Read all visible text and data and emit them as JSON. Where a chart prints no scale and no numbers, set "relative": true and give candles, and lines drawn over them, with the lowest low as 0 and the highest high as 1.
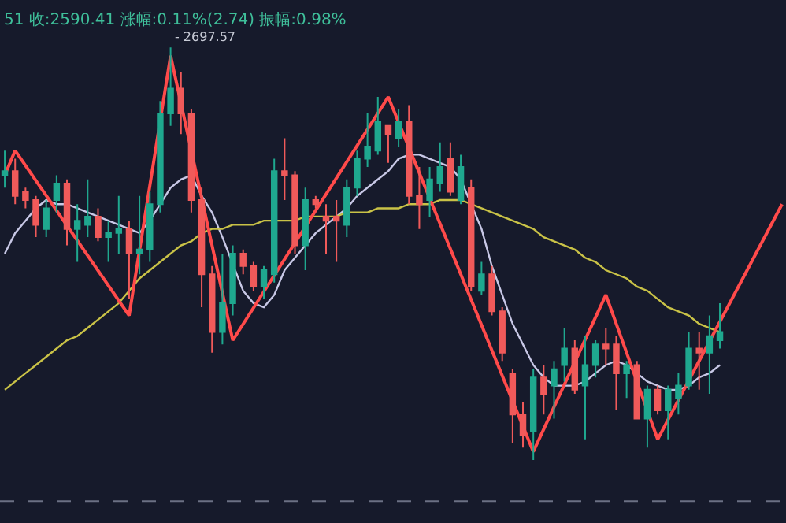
{
  "chart_data": {
    "type": "candlestick",
    "relative": true,
    "title": "51 收:2590.41 涨幅:0.11%(2.74) 振幅:0.98%",
    "annotations": [
      "- 2697.57"
    ],
    "categories": [
      null,
      null,
      null,
      null,
      null,
      null,
      null,
      null,
      null,
      null,
      null,
      null,
      null,
      null,
      null,
      null,
      null,
      null,
      null,
      null,
      null,
      null,
      null,
      null,
      null,
      null,
      null,
      null,
      null,
      null,
      null,
      null,
      null,
      null,
      null,
      null,
      null,
      null,
      null,
      null,
      null,
      null,
      null,
      null,
      null,
      null,
      null,
      null,
      null,
      null,
      null,
      null,
      null,
      null,
      null,
      null,
      null,
      null,
      null,
      null,
      null,
      null,
      null,
      null,
      null,
      null,
      null,
      null,
      null,
      null,
      null,
      null,
      null,
      null,
      null,
      null
    ],
    "ohlc": [
      [
        0.69,
        0.75,
        0.66,
        0.7
      ],
      [
        0.7,
        0.73,
        0.62,
        0.64
      ],
      [
        0.65,
        0.66,
        0.61,
        0.63
      ],
      [
        0.63,
        0.64,
        0.54,
        0.57
      ],
      [
        0.56,
        0.63,
        0.54,
        0.61
      ],
      [
        0.63,
        0.69,
        0.6,
        0.67
      ],
      [
        0.67,
        0.68,
        0.52,
        0.56
      ],
      [
        0.56,
        0.62,
        0.48,
        0.58
      ],
      [
        0.57,
        0.68,
        0.54,
        0.59
      ],
      [
        0.59,
        0.61,
        0.53,
        0.54
      ],
      [
        0.54,
        0.58,
        0.48,
        0.55
      ],
      [
        0.55,
        0.64,
        0.5,
        0.56
      ],
      [
        0.56,
        0.58,
        0.39,
        0.5
      ],
      [
        0.5,
        0.64,
        0.45,
        0.51
      ],
      [
        0.51,
        0.65,
        0.48,
        0.62
      ],
      [
        0.62,
        0.87,
        0.6,
        0.84
      ],
      [
        0.84,
        1.0,
        0.81,
        0.9
      ],
      [
        0.9,
        0.94,
        0.79,
        0.84
      ],
      [
        0.84,
        0.85,
        0.6,
        0.63
      ],
      [
        0.63,
        0.66,
        0.37,
        0.45
      ],
      [
        0.45,
        0.47,
        0.26,
        0.31
      ],
      [
        0.31,
        0.5,
        0.28,
        0.38
      ],
      [
        0.38,
        0.52,
        0.35,
        0.5
      ],
      [
        0.5,
        0.51,
        0.45,
        0.47
      ],
      [
        0.47,
        0.48,
        0.41,
        0.42
      ],
      [
        0.42,
        0.47,
        0.39,
        0.46
      ],
      [
        0.45,
        0.73,
        0.43,
        0.7
      ],
      [
        0.7,
        0.78,
        0.63,
        0.69
      ],
      [
        0.69,
        0.7,
        0.5,
        0.52
      ],
      [
        0.52,
        0.66,
        0.46,
        0.63
      ],
      [
        0.63,
        0.64,
        0.61,
        0.62
      ],
      [
        0.59,
        0.62,
        0.5,
        0.58
      ],
      [
        0.59,
        0.63,
        0.48,
        0.58
      ],
      [
        0.57,
        0.68,
        0.54,
        0.66
      ],
      [
        0.66,
        0.75,
        0.64,
        0.73
      ],
      [
        0.73,
        0.84,
        0.71,
        0.76
      ],
      [
        0.75,
        0.88,
        0.74,
        0.82
      ],
      [
        0.81,
        0.81,
        0.72,
        0.79
      ],
      [
        0.78,
        0.85,
        0.76,
        0.82
      ],
      [
        0.82,
        0.86,
        0.62,
        0.64
      ],
      [
        0.64,
        0.71,
        0.56,
        0.62
      ],
      [
        0.63,
        0.71,
        0.59,
        0.68
      ],
      [
        0.67,
        0.77,
        0.65,
        0.71
      ],
      [
        0.73,
        0.77,
        0.64,
        0.65
      ],
      [
        0.63,
        0.74,
        0.62,
        0.71
      ],
      [
        0.66,
        0.68,
        0.41,
        0.42
      ],
      [
        0.41,
        0.48,
        0.4,
        0.45
      ],
      [
        0.45,
        0.47,
        0.35,
        0.36
      ],
      [
        0.36,
        0.37,
        0.24,
        0.26
      ],
      [
        0.21,
        0.22,
        0.04,
        0.11
      ],
      [
        0.11,
        0.14,
        0.03,
        0.06
      ],
      [
        0.07,
        0.22,
        0.0,
        0.2
      ],
      [
        0.2,
        0.23,
        0.11,
        0.16
      ],
      [
        0.18,
        0.24,
        0.1,
        0.22
      ],
      [
        0.23,
        0.32,
        0.19,
        0.27
      ],
      [
        0.27,
        0.29,
        0.16,
        0.17
      ],
      [
        0.18,
        0.3,
        0.05,
        0.23
      ],
      [
        0.23,
        0.29,
        0.2,
        0.28
      ],
      [
        0.28,
        0.32,
        0.23,
        0.27
      ],
      [
        0.28,
        0.3,
        0.12,
        0.21
      ],
      [
        0.21,
        0.24,
        0.15,
        0.23
      ],
      [
        0.23,
        0.24,
        0.1,
        0.1
      ],
      [
        0.1,
        0.18,
        0.03,
        0.17
      ],
      [
        0.17,
        0.18,
        0.11,
        0.12
      ],
      [
        0.12,
        0.18,
        0.05,
        0.17
      ],
      [
        0.15,
        0.21,
        0.11,
        0.18
      ],
      [
        0.18,
        0.31,
        0.17,
        0.27
      ],
      [
        0.27,
        0.31,
        0.17,
        0.26
      ],
      [
        0.26,
        0.35,
        0.16,
        0.3
      ],
      [
        0.29,
        0.38,
        0.27,
        0.31
      ],
      null,
      null,
      null,
      null,
      null,
      null
    ],
    "colors": [
      "#1fa88f",
      "#f05a5a",
      "#f05a5a",
      "#f05a5a",
      "#1fa88f",
      "#1fa88f",
      "#f05a5a",
      "#1fa88f",
      "#1fa88f",
      "#f05a5a",
      "#1fa88f",
      "#1fa88f",
      "#f05a5a",
      "#1fa88f",
      "#1fa88f",
      "#1fa88f",
      "#1fa88f",
      "#f05a5a",
      "#f05a5a",
      "#f05a5a",
      "#f05a5a",
      "#1fa88f",
      "#1fa88f",
      "#f05a5a",
      "#f05a5a",
      "#1fa88f",
      "#1fa88f",
      "#f05a5a",
      "#f05a5a",
      "#1fa88f",
      "#f05a5a",
      "#f05a5a",
      "#f05a5a",
      "#1fa88f",
      "#1fa88f",
      "#1fa88f",
      "#1fa88f",
      "#f05a5a",
      "#1fa88f",
      "#f05a5a",
      "#f05a5a",
      "#1fa88f",
      "#1fa88f",
      "#f05a5a",
      "#1fa88f",
      "#f05a5a",
      "#1fa88f",
      "#f05a5a",
      "#f05a5a",
      "#f05a5a",
      "#f05a5a",
      "#1fa88f",
      "#f05a5a",
      "#1fa88f",
      "#1fa88f",
      "#f05a5a",
      "#1fa88f",
      "#1fa88f",
      "#f05a5a",
      "#f05a5a",
      "#1fa88f",
      "#f05a5a",
      "#1fa88f",
      "#f05a5a",
      "#1fa88f",
      "#1fa88f",
      "#1fa88f",
      "#f05a5a",
      "#1fa88f",
      "#1fa88f",
      null,
      null,
      null,
      null,
      null,
      null
    ],
    "series": [
      {
        "type": "line",
        "color": "#c8c8e6",
        "values": [
          0.5,
          0.55,
          0.58,
          0.61,
          0.63,
          0.62,
          0.62,
          0.61,
          0.6,
          0.59,
          0.58,
          0.57,
          0.56,
          0.55,
          0.58,
          0.62,
          0.66,
          0.68,
          0.69,
          0.64,
          0.6,
          0.54,
          null,
          0.41,
          0.38,
          0.37,
          0.4,
          0.46,
          0.49,
          0.52,
          0.55,
          0.57,
          0.59,
          0.61,
          0.64,
          0.66,
          0.68,
          0.7,
          0.73,
          0.74,
          0.74,
          0.73,
          0.72,
          0.71,
          0.68,
          null,
          0.56,
          0.47,
          0.4,
          0.33,
          0.28,
          0.23,
          0.2,
          0.18,
          0.18,
          0.18,
          0.19,
          0.21,
          0.23,
          0.24,
          0.23,
          0.21,
          0.19,
          0.18,
          0.17,
          0.17,
          0.18,
          0.2,
          0.21,
          0.23,
          null,
          null,
          null,
          null,
          null,
          null
        ]
      },
      {
        "type": "line",
        "color": "#c9c247",
        "values": [
          0.17,
          0.19,
          0.21,
          0.23,
          0.25,
          0.27,
          0.29,
          0.3,
          0.32,
          0.34,
          0.36,
          0.38,
          0.41,
          0.44,
          0.46,
          0.48,
          0.5,
          0.52,
          0.53,
          0.55,
          0.56,
          0.56,
          0.57,
          0.57,
          0.57,
          0.58,
          0.58,
          0.58,
          0.58,
          0.59,
          0.59,
          0.59,
          0.59,
          0.6,
          0.6,
          0.6,
          0.61,
          0.61,
          0.61,
          0.62,
          0.62,
          0.62,
          0.63,
          0.63,
          0.63,
          0.62,
          0.61,
          0.6,
          0.59,
          0.58,
          0.57,
          0.56,
          0.54,
          0.53,
          0.52,
          0.51,
          0.49,
          0.48,
          0.46,
          0.45,
          0.44,
          0.42,
          0.41,
          0.39,
          0.37,
          0.36,
          0.35,
          0.33,
          0.32,
          0.31,
          null,
          null,
          null,
          null,
          null,
          null
        ]
      },
      {
        "type": "line",
        "color": "#ff4a4a",
        "values": [
          0.69,
          0.75,
          null,
          null,
          null,
          null,
          null,
          null,
          null,
          null,
          null,
          null,
          0.35,
          null,
          null,
          null,
          0.98,
          null,
          null,
          null,
          null,
          null,
          0.29,
          null,
          null,
          null,
          null,
          null,
          null,
          null,
          null,
          null,
          null,
          null,
          null,
          null,
          null,
          0.88,
          null,
          null,
          null,
          null,
          null,
          null,
          null,
          null,
          null,
          null,
          null,
          null,
          null,
          0.02,
          null,
          null,
          null,
          null,
          null,
          null,
          0.4,
          null,
          null,
          null,
          null,
          0.05,
          null,
          null,
          null,
          null,
          null,
          null,
          null,
          null,
          null,
          null,
          null,
          0.62
        ]
      }
    ],
    "ref_lines": [
      {
        "axis": "y",
        "value": -0.1,
        "color": "#6b7084",
        "line_style": "dashed"
      }
    ]
  }
}
